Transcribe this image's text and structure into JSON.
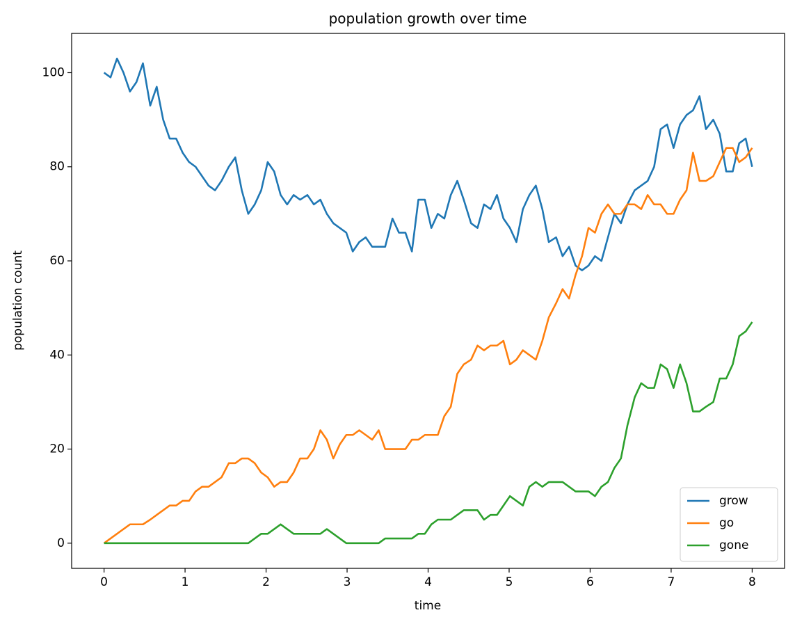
{
  "chart_data": {
    "type": "line",
    "title": "population growth over time",
    "xlabel": "time",
    "ylabel": "population count",
    "x": [
      0,
      0.08,
      0.16,
      0.24,
      0.32,
      0.4,
      0.48,
      0.57,
      0.65,
      0.73,
      0.81,
      0.89,
      0.97,
      1.05,
      1.13,
      1.21,
      1.29,
      1.37,
      1.45,
      1.54,
      1.62,
      1.7,
      1.78,
      1.86,
      1.94,
      2.02,
      2.1,
      2.18,
      2.26,
      2.34,
      2.42,
      2.51,
      2.59,
      2.67,
      2.75,
      2.83,
      2.91,
      2.99,
      3.07,
      3.15,
      3.23,
      3.31,
      3.39,
      3.47,
      3.56,
      3.64,
      3.72,
      3.8,
      3.88,
      3.96,
      4.04,
      4.12,
      4.2,
      4.28,
      4.36,
      4.44,
      4.53,
      4.61,
      4.69,
      4.77,
      4.85,
      4.93,
      5.01,
      5.09,
      5.17,
      5.25,
      5.33,
      5.41,
      5.49,
      5.58,
      5.66,
      5.74,
      5.82,
      5.9,
      5.98,
      6.06,
      6.14,
      6.22,
      6.3,
      6.38,
      6.46,
      6.55,
      6.63,
      6.71,
      6.79,
      6.87,
      6.95,
      7.03,
      7.11,
      7.19,
      7.27,
      7.35,
      7.43,
      7.52,
      7.6,
      7.68,
      7.76,
      7.84,
      7.92,
      8
    ],
    "series": [
      {
        "name": "grow",
        "color": "#1f77b4",
        "values": [
          100,
          99,
          103,
          100,
          96,
          98,
          102,
          93,
          97,
          90,
          86,
          86,
          83,
          81,
          80,
          78,
          76,
          75,
          77,
          80,
          82,
          75,
          70,
          72,
          75,
          81,
          79,
          74,
          72,
          74,
          73,
          74,
          72,
          73,
          70,
          68,
          67,
          66,
          62,
          64,
          65,
          63,
          63,
          63,
          69,
          66,
          66,
          62,
          73,
          73,
          67,
          70,
          69,
          74,
          77,
          73,
          68,
          67,
          72,
          71,
          74,
          69,
          67,
          64,
          71,
          74,
          76,
          71,
          64,
          65,
          61,
          63,
          59,
          58,
          59,
          61,
          60,
          65,
          70,
          68,
          72,
          75,
          76,
          77,
          80,
          88,
          89,
          84,
          89,
          91,
          92,
          95,
          88,
          90,
          87,
          79,
          79,
          85,
          86,
          80
        ]
      },
      {
        "name": "go",
        "color": "#ff7f0e",
        "values": [
          0,
          1,
          2,
          3,
          4,
          4,
          4,
          5,
          6,
          7,
          8,
          8,
          9,
          9,
          11,
          12,
          12,
          13,
          14,
          17,
          17,
          18,
          18,
          17,
          15,
          14,
          12,
          13,
          13,
          15,
          18,
          18,
          20,
          24,
          22,
          18,
          21,
          23,
          23,
          24,
          23,
          22,
          24,
          20,
          20,
          20,
          20,
          22,
          22,
          23,
          23,
          23,
          27,
          29,
          36,
          38,
          39,
          42,
          41,
          42,
          42,
          43,
          38,
          39,
          41,
          40,
          39,
          43,
          48,
          51,
          54,
          52,
          57,
          61,
          67,
          66,
          70,
          72,
          70,
          70,
          72,
          72,
          71,
          74,
          72,
          72,
          70,
          70,
          73,
          75,
          83,
          77,
          77,
          78,
          81,
          84,
          84,
          81,
          82,
          84
        ]
      },
      {
        "name": "gone",
        "color": "#2ca02c",
        "values": [
          0,
          0,
          0,
          0,
          0,
          0,
          0,
          0,
          0,
          0,
          0,
          0,
          0,
          0,
          0,
          0,
          0,
          0,
          0,
          0,
          0,
          0,
          0,
          1,
          2,
          2,
          3,
          4,
          3,
          2,
          2,
          2,
          2,
          2,
          3,
          2,
          1,
          0,
          0,
          0,
          0,
          0,
          0,
          1,
          1,
          1,
          1,
          1,
          2,
          2,
          4,
          5,
          5,
          5,
          6,
          7,
          7,
          7,
          5,
          6,
          6,
          8,
          10,
          9,
          8,
          12,
          13,
          12,
          13,
          13,
          13,
          12,
          11,
          11,
          11,
          10,
          12,
          13,
          16,
          18,
          25,
          31,
          34,
          33,
          33,
          38,
          37,
          33,
          38,
          34,
          28,
          28,
          29,
          30,
          35,
          35,
          38,
          44,
          45,
          47
        ]
      }
    ],
    "xlim": [
      -0.4,
      8.4
    ],
    "ylim": [
      -5.35,
      108.35
    ],
    "xticks": [
      0,
      1,
      2,
      3,
      4,
      5,
      6,
      7,
      8
    ],
    "yticks": [
      0,
      20,
      40,
      60,
      80,
      100
    ],
    "grid": false,
    "legend": "lower right"
  }
}
